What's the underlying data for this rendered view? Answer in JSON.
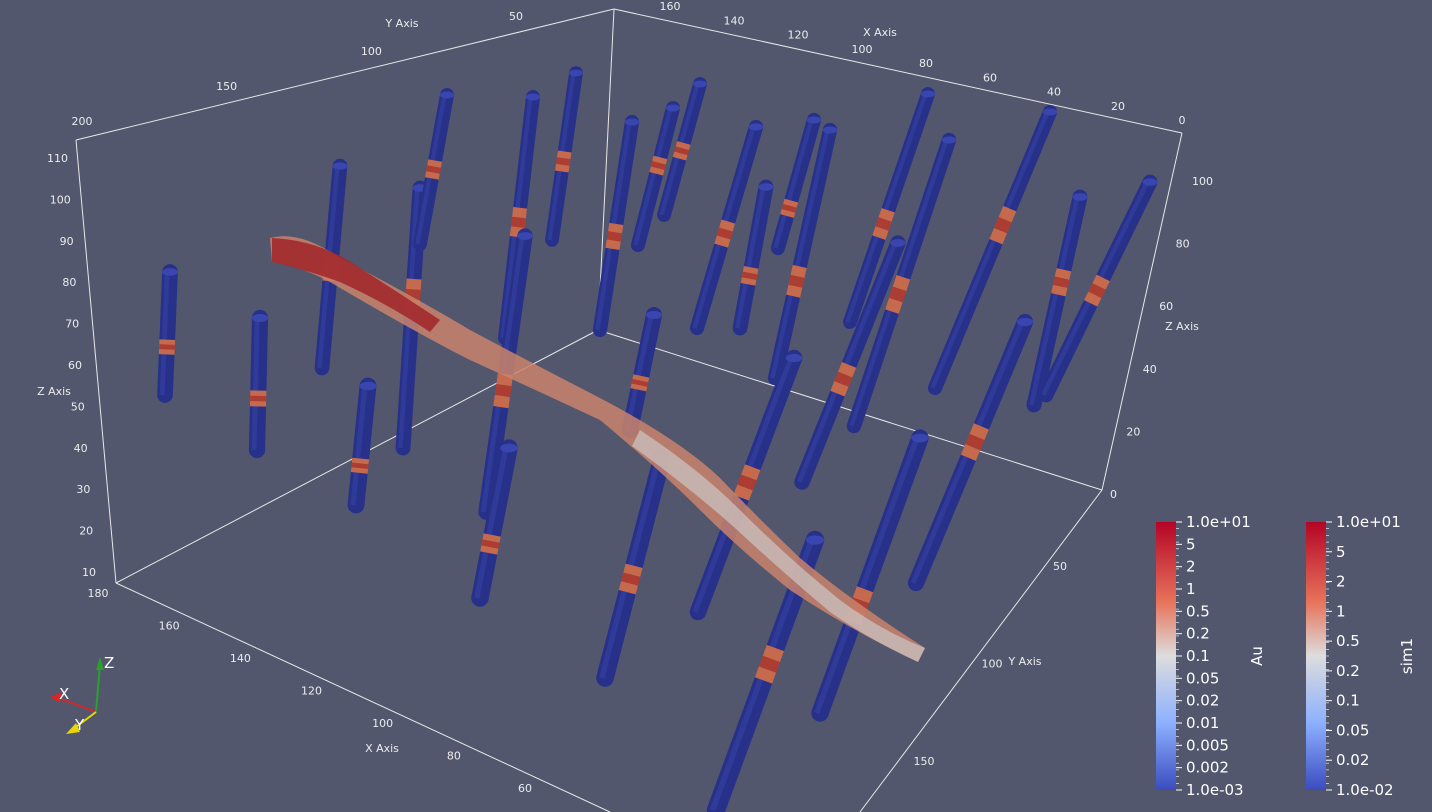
{
  "scene": {
    "background": "#52576e",
    "hole_color": "#27318a",
    "hole_cap_color": "#3a46b0",
    "axis_line_color": "#e8e8e8"
  },
  "axes": {
    "x": {
      "title": "X Axis",
      "ticks_top": [
        "160",
        "140",
        "120",
        "100",
        "80",
        "60",
        "40",
        "20",
        "0"
      ],
      "ticks_bottom": [
        "180",
        "160",
        "140",
        "120",
        "100",
        "80",
        "60"
      ]
    },
    "y": {
      "title": "Y Axis",
      "ticks_top": [
        "200",
        "150",
        "100",
        "50"
      ],
      "ticks_right": [
        "50",
        "100",
        "150"
      ]
    },
    "z": {
      "title": "Z Axis",
      "ticks_left": [
        "110",
        "100",
        "90",
        "80",
        "70",
        "60",
        "50",
        "40",
        "30",
        "20",
        "10"
      ],
      "ticks_right": [
        "100",
        "80",
        "60",
        "40",
        "20",
        "0"
      ]
    }
  },
  "colorbars": [
    {
      "title": "Au",
      "labels": [
        "1.0e+01",
        "5",
        "2",
        "1",
        "0.5",
        "0.2",
        "0.1",
        "0.05",
        "0.02",
        "0.01",
        "0.005",
        "0.002",
        "1.0e-03"
      ],
      "colors": [
        "#b40426",
        "#f7b396",
        "#dddddd",
        "#8db0fe",
        "#3b4cc0"
      ]
    },
    {
      "title": "sim1",
      "labels": [
        "1.0e+01",
        "5",
        "2",
        "1",
        "0.5",
        "0.2",
        "0.1",
        "0.05",
        "0.02",
        "1.0e-02"
      ],
      "colors": [
        "#b40426",
        "#f7b396",
        "#dddddd",
        "#8db0fe",
        "#3b4cc0"
      ]
    }
  ],
  "orientation": {
    "x": "X",
    "y": "Y",
    "z": "Z",
    "x_color": "#d62728",
    "y_color": "#e8d800",
    "z_color": "#2ca02c"
  }
}
